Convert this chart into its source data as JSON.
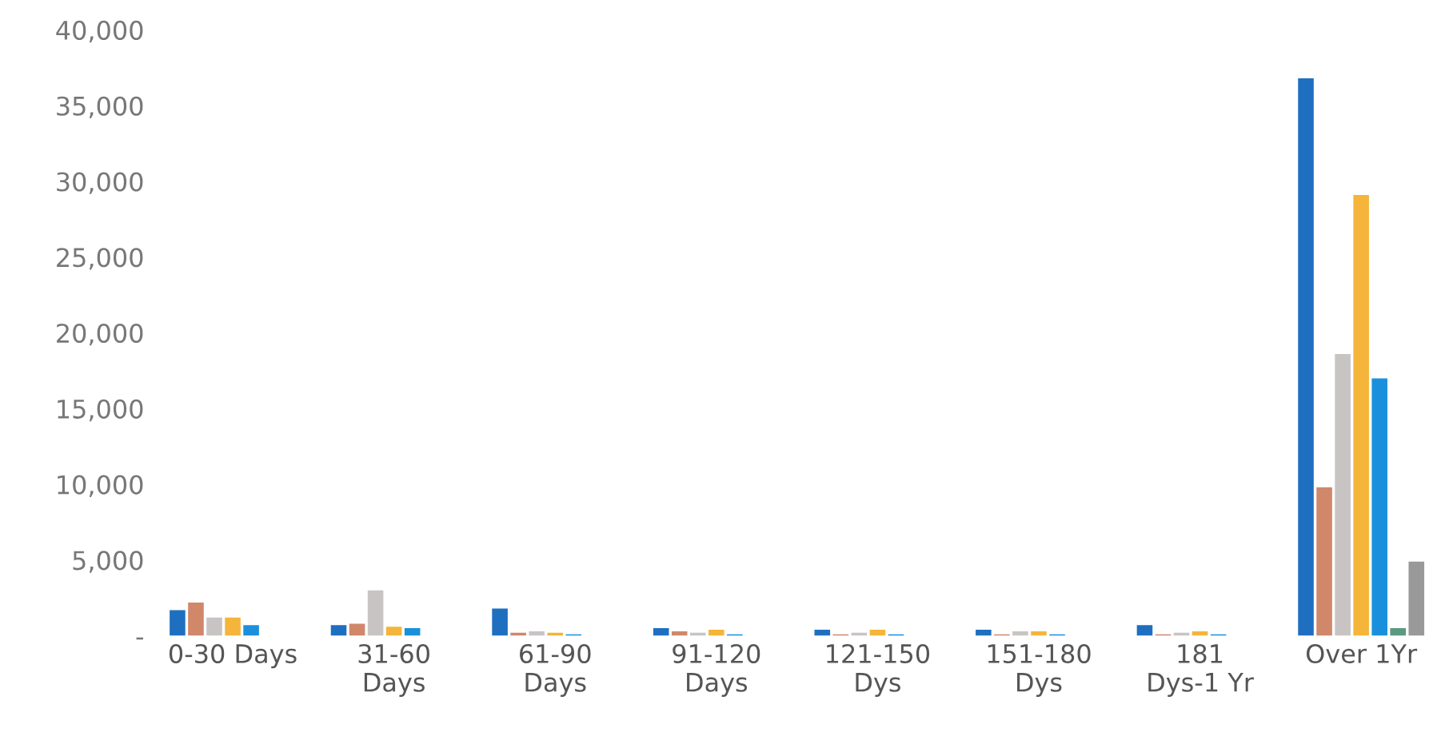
{
  "chart_data": {
    "type": "bar",
    "categories": [
      "0-30 Days",
      "31-60 Days",
      "61-90 Days",
      "91-120 Days",
      "121-150 Dys",
      "151-180 Dys",
      "181 Dys-1 Yr",
      "Over 1Yr"
    ],
    "series": [
      {
        "color": "#1f6fc0",
        "values": [
          1700,
          700,
          1800,
          500,
          400,
          400,
          700,
          36800
        ]
      },
      {
        "color": "#d0876a",
        "values": [
          2200,
          800,
          200,
          300,
          100,
          100,
          100,
          9800
        ]
      },
      {
        "color": "#c8c4c4",
        "values": [
          1200,
          3000,
          300,
          200,
          200,
          300,
          200,
          18600
        ]
      },
      {
        "color": "#f5b53a",
        "values": [
          1200,
          600,
          200,
          400,
          400,
          300,
          300,
          29100
        ]
      },
      {
        "color": "#1a90dc",
        "values": [
          700,
          500,
          100,
          100,
          100,
          100,
          100,
          17000
        ]
      },
      {
        "color": "#5a9a80",
        "values": [
          null,
          null,
          null,
          null,
          null,
          null,
          null,
          500
        ]
      },
      {
        "color": "#999999",
        "values": [
          null,
          null,
          null,
          null,
          null,
          null,
          null,
          4900
        ]
      }
    ],
    "ylim": [
      0,
      40000
    ],
    "yticks": [
      {
        "value": 0,
        "label": "-"
      },
      {
        "value": 5000,
        "label": "5,000"
      },
      {
        "value": 10000,
        "label": "10,000"
      },
      {
        "value": 15000,
        "label": "15,000"
      },
      {
        "value": 20000,
        "label": "20,000"
      },
      {
        "value": 25000,
        "label": "25,000"
      },
      {
        "value": 30000,
        "label": "30,000"
      },
      {
        "value": 35000,
        "label": "35,000"
      },
      {
        "value": 40000,
        "label": "40,000"
      }
    ],
    "grid": false,
    "legend": false
  }
}
